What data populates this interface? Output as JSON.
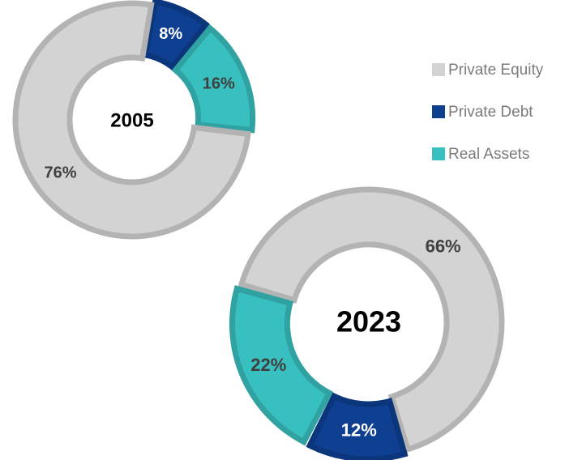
{
  "chart_data": [
    {
      "type": "donut",
      "title": "2005",
      "categories": [
        "Private Equity",
        "Private Debt",
        "Real Assets"
      ],
      "values": [
        76,
        8,
        16
      ],
      "value_labels": [
        "76%",
        "8%",
        "16%"
      ],
      "colors": [
        "#d3d3d3",
        "#0e3f91",
        "#38bfbf"
      ]
    },
    {
      "type": "donut",
      "title": "2023",
      "categories": [
        "Private Equity",
        "Private Debt",
        "Real Assets"
      ],
      "values": [
        66,
        12,
        22
      ],
      "value_labels": [
        "66%",
        "12%",
        "22%"
      ],
      "colors": [
        "#d3d3d3",
        "#0e3f91",
        "#38bfbf"
      ]
    }
  ]
}
